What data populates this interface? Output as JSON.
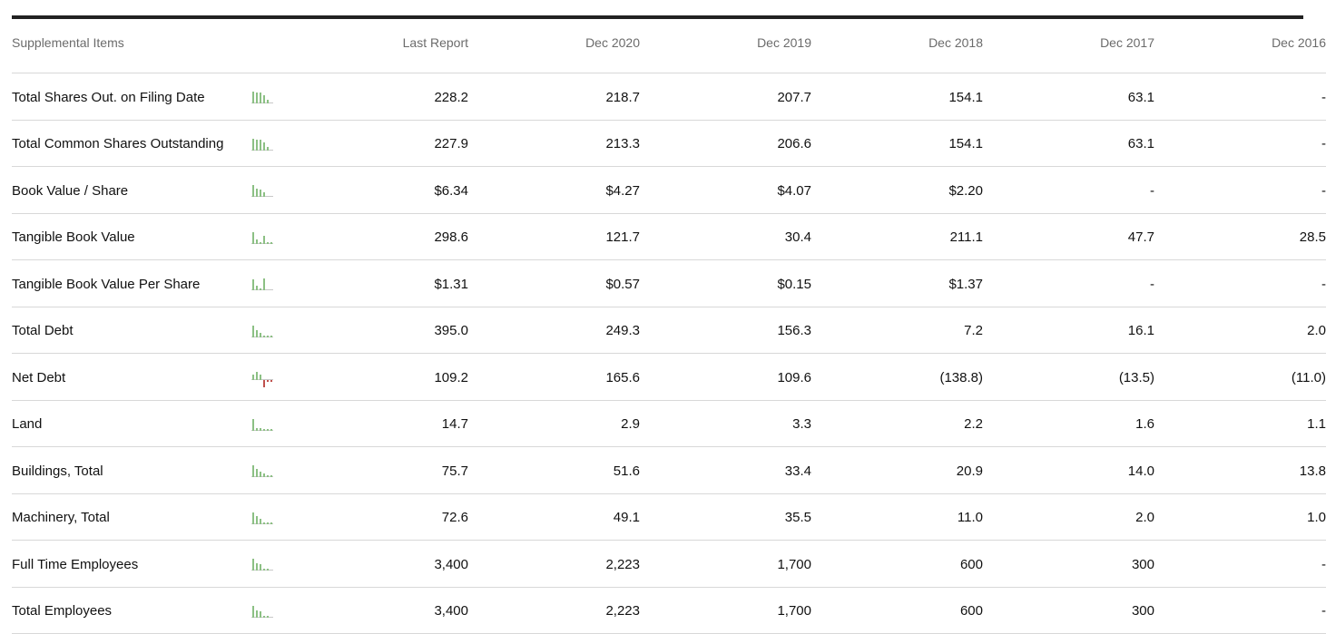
{
  "table": {
    "headers": {
      "label": "Supplemental Items",
      "periods": [
        "Last Report",
        "Dec 2020",
        "Dec 2019",
        "Dec 2018",
        "Dec 2017",
        "Dec 2016"
      ]
    },
    "rows": [
      {
        "label": "Total Shares Out. on Filing Date",
        "values": [
          "228.2",
          "218.7",
          "207.7",
          "154.1",
          "63.1",
          "-"
        ],
        "spark": [
          228.2,
          218.7,
          207.7,
          154.1,
          63.1,
          0
        ]
      },
      {
        "label": "Total Common Shares Outstanding",
        "values": [
          "227.9",
          "213.3",
          "206.6",
          "154.1",
          "63.1",
          "-"
        ],
        "spark": [
          227.9,
          213.3,
          206.6,
          154.1,
          63.1,
          0
        ]
      },
      {
        "label": "Book Value / Share",
        "values": [
          "$6.34",
          "$4.27",
          "$4.07",
          "$2.20",
          "-",
          "-"
        ],
        "spark": [
          6.34,
          4.27,
          4.07,
          2.2,
          0,
          0
        ]
      },
      {
        "label": "Tangible Book Value",
        "values": [
          "298.6",
          "121.7",
          "30.4",
          "211.1",
          "47.7",
          "28.5"
        ],
        "spark": [
          298.6,
          121.7,
          30.4,
          211.1,
          47.7,
          28.5
        ]
      },
      {
        "label": "Tangible Book Value Per Share",
        "values": [
          "$1.31",
          "$0.57",
          "$0.15",
          "$1.37",
          "-",
          "-"
        ],
        "spark": [
          1.31,
          0.57,
          0.15,
          1.37,
          0,
          0
        ]
      },
      {
        "label": "Total Debt",
        "values": [
          "395.0",
          "249.3",
          "156.3",
          "7.2",
          "16.1",
          "2.0"
        ],
        "spark": [
          395.0,
          249.3,
          156.3,
          7.2,
          16.1,
          2.0
        ]
      },
      {
        "label": "Net Debt",
        "values": [
          "109.2",
          "165.6",
          "109.6",
          "(138.8)",
          "(13.5)",
          "(11.0)"
        ],
        "spark": [
          109.2,
          165.6,
          109.6,
          -138.8,
          -13.5,
          -11.0
        ]
      },
      {
        "label": "Land",
        "values": [
          "14.7",
          "2.9",
          "3.3",
          "2.2",
          "1.6",
          "1.1"
        ],
        "spark": [
          14.7,
          2.9,
          3.3,
          2.2,
          1.6,
          1.1
        ]
      },
      {
        "label": "Buildings, Total",
        "values": [
          "75.7",
          "51.6",
          "33.4",
          "20.9",
          "14.0",
          "13.8"
        ],
        "spark": [
          75.7,
          51.6,
          33.4,
          20.9,
          14.0,
          13.8
        ]
      },
      {
        "label": "Machinery, Total",
        "values": [
          "72.6",
          "49.1",
          "35.5",
          "11.0",
          "2.0",
          "1.0"
        ],
        "spark": [
          72.6,
          49.1,
          35.5,
          11.0,
          2.0,
          1.0
        ]
      },
      {
        "label": "Full Time Employees",
        "values": [
          "3,400",
          "2,223",
          "1,700",
          "600",
          "300",
          "-"
        ],
        "spark": [
          3400,
          2223,
          1700,
          600,
          300,
          0
        ]
      },
      {
        "label": "Total Employees",
        "values": [
          "3,400",
          "2,223",
          "1,700",
          "600",
          "300",
          "-"
        ],
        "spark": [
          3400,
          2223,
          1700,
          600,
          300,
          0
        ]
      }
    ]
  },
  "colors": {
    "spark_positive": "#8cc084",
    "spark_negative": "#c0504d",
    "spark_baseline": "#c8c8c8",
    "border": "#d8d8d8",
    "top_rule": "#222222"
  },
  "icons": {
    "sparkline": "mini-bar-chart-icon"
  }
}
